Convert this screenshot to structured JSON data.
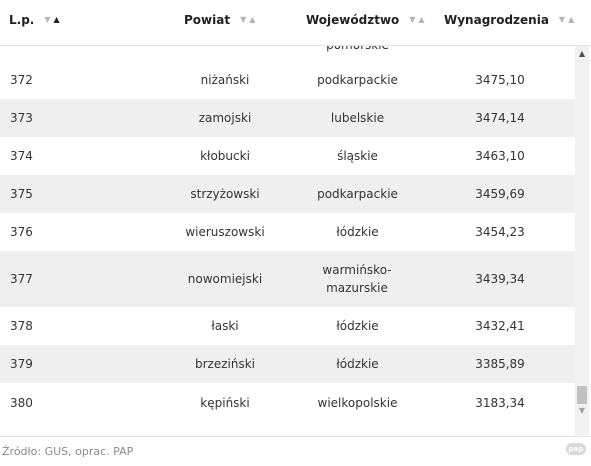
{
  "table": {
    "headers": {
      "lp": "L.p.",
      "powiat": "Powiat",
      "wojewodztwo": "Województwo",
      "wynagrodzenia": "Wynagrodzenia"
    },
    "sort_glyphs": {
      "down": "▼",
      "up": "▲"
    },
    "partial_row": {
      "wojewodztwo": "pomorskie"
    },
    "rows": [
      {
        "lp": "372",
        "powiat": "niżański",
        "wojewodztwo": "podkarpackie",
        "wynagrodzenia": "3475,10"
      },
      {
        "lp": "373",
        "powiat": "zamojski",
        "wojewodztwo": "lubelskie",
        "wynagrodzenia": "3474,14"
      },
      {
        "lp": "374",
        "powiat": "kłobucki",
        "wojewodztwo": "śląskie",
        "wynagrodzenia": "3463,10"
      },
      {
        "lp": "375",
        "powiat": "strzyżowski",
        "wojewodztwo": "podkarpackie",
        "wynagrodzenia": "3459,69"
      },
      {
        "lp": "376",
        "powiat": "wieruszowski",
        "wojewodztwo": "łódzkie",
        "wynagrodzenia": "3454,23"
      },
      {
        "lp": "377",
        "powiat": "nowomiejski",
        "wojewodztwo": "warmińsko-mazurskie",
        "wynagrodzenia": "3439,34"
      },
      {
        "lp": "378",
        "powiat": "łaski",
        "wojewodztwo": "łódzkie",
        "wynagrodzenia": "3432,41"
      },
      {
        "lp": "379",
        "powiat": "brzeziński",
        "wojewodztwo": "łódzkie",
        "wynagrodzenia": "3385,89"
      },
      {
        "lp": "380",
        "powiat": "kępiński",
        "wojewodztwo": "wielkopolskie",
        "wynagrodzenia": "3183,34"
      }
    ]
  },
  "scrollbar": {
    "up_glyph": "▲",
    "down_glyph": "▼"
  },
  "footer": {
    "source": "Źródło: GUS, oprac. PAP",
    "logo_text": "pap"
  },
  "colors": {
    "row_alt": "#efefef",
    "text": "#333333",
    "header_text": "#222222"
  }
}
